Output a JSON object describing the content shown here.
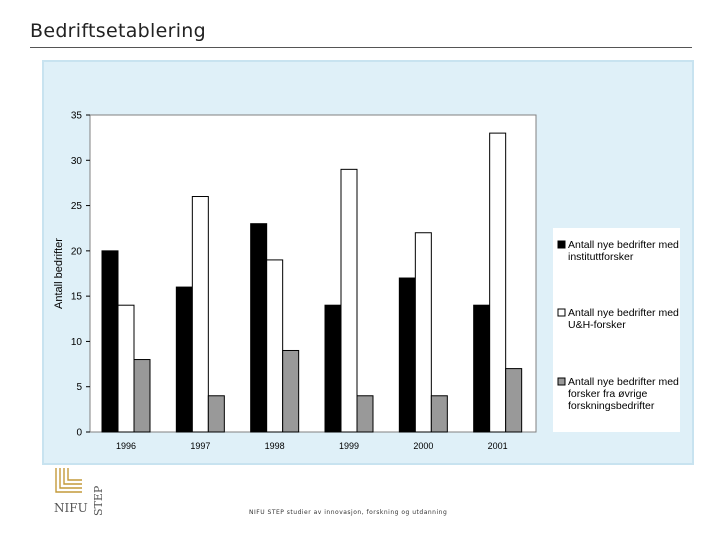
{
  "slide": {
    "title": "Bedriftsetablering",
    "footer": "NIFU STEP studier av innovasjon, forskning og utdanning",
    "logo_text": "NIFU STEP"
  },
  "colors": {
    "frame_bg": "#dff0f8",
    "plot_bg": "#ffffff",
    "series": [
      "#000000",
      "#ffffff",
      "#999999"
    ]
  },
  "chart_data": {
    "type": "bar",
    "title": "",
    "xlabel": "",
    "ylabel": "Antall bedrifter",
    "ylim": [
      0,
      35
    ],
    "yticks": [
      0,
      5,
      10,
      15,
      20,
      25,
      30,
      35
    ],
    "grid": false,
    "legend_position": "right",
    "categories": [
      "1996",
      "1997",
      "1998",
      "1999",
      "2000",
      "2001"
    ],
    "series": [
      {
        "name": "Antall nye bedrifter med instituttforsker",
        "values": [
          20,
          16,
          23,
          14,
          17,
          14
        ]
      },
      {
        "name": "Antall nye bedrifter med U&H-forsker",
        "values": [
          14,
          26,
          19,
          29,
          22,
          33
        ]
      },
      {
        "name": "Antall nye bedrifter med forsker fra øvrige forskningsbedrifter",
        "values": [
          8,
          4,
          9,
          4,
          4,
          7
        ]
      }
    ],
    "legend_lines": [
      [
        "Antall nye bedrifter med",
        "instituttforsker"
      ],
      [
        "Antall nye bedrifter med",
        "U&H-forsker"
      ],
      [
        "Antall nye bedrifter med",
        "forsker fra øvrige",
        "forskningsbedrifter"
      ]
    ]
  }
}
